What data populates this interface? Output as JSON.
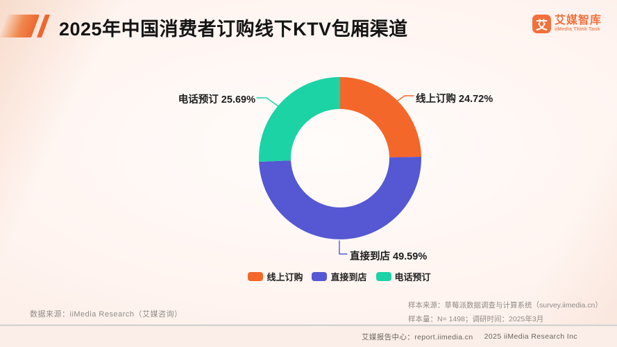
{
  "header": {
    "title": "2025年中国消费者订购线下KTV包厢渠道",
    "logo": {
      "icon_glyph": "艾",
      "name": "艾媒智库",
      "tagline": "iiMedia Think Tank",
      "brand_color": "#F2703C"
    }
  },
  "chart_data": {
    "type": "pie",
    "subtype": "donut",
    "title": "2025年中国消费者订购线下KTV包厢渠道",
    "categories": [
      "线上订购",
      "直接到店",
      "电话预订"
    ],
    "values": [
      24.72,
      49.59,
      25.69
    ],
    "unit": "%",
    "colors": [
      "#F4672A",
      "#5558D2",
      "#1BD3A5"
    ],
    "start_angle_deg": 0,
    "direction": "clockwise",
    "callouts": [
      "线上订购 24.72%",
      "直接到店 49.59%",
      "电话预订 25.69%"
    ],
    "legend": {
      "position": "bottom",
      "labels": [
        "线上订购",
        "直接到店",
        "电话预订"
      ]
    }
  },
  "footnotes": {
    "data_source": "数据来源：iiMedia Research（艾媒咨询）",
    "sample_source": "样本来源：草莓派数据调查与计算系统（survey.iimedia.cn）",
    "sample_size": "样本量：N= 1498；调研时间：2025年3月"
  },
  "footer": {
    "report_center": "艾媒报告中心：report.iimedia.cn",
    "copyright": "2025 iiMedia Research Inc"
  }
}
